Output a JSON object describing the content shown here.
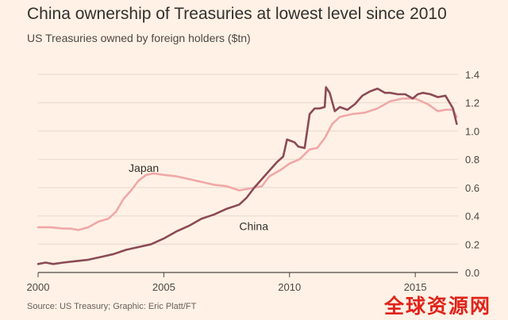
{
  "title": "China ownership of Treasuries at lowest level since 2010",
  "subtitle": "US Treasuries owned by foreign holders ($tn)",
  "source": "Source: US Treasury; Graphic: Eric Platt/FT",
  "watermark": "全球资源网",
  "colors": {
    "background": "#fff1e5",
    "china": "#8b4a56",
    "japan": "#f0a8a8",
    "grid": "#e5d8cc",
    "axis": "#4d4845",
    "tick_text": "#4d4845",
    "watermark": "#e0231a"
  },
  "chart_data": {
    "type": "line",
    "title": "China ownership of Treasuries at lowest level since 2010",
    "subtitle": "US Treasuries owned by foreign holders ($tn)",
    "xlim": [
      2000,
      2016.7
    ],
    "ylim": [
      0,
      1.4
    ],
    "x_ticks": [
      2000,
      2005,
      2010,
      2015
    ],
    "y_ticks": [
      0.0,
      0.2,
      0.4,
      0.6,
      0.8,
      1.0,
      1.2,
      1.4
    ],
    "y_tick_labels": [
      "0.0",
      "0.2",
      "0.4",
      "0.6",
      "0.8",
      "1.0",
      "1.2",
      "1.4"
    ],
    "grid": true,
    "series": [
      {
        "name": "Japan",
        "color_key": "japan",
        "x": [
          2000.0,
          2000.5,
          2001.0,
          2001.3,
          2001.6,
          2002.0,
          2002.4,
          2002.8,
          2003.1,
          2003.4,
          2003.7,
          2004.0,
          2004.3,
          2004.6,
          2005.0,
          2005.5,
          2006.0,
          2006.5,
          2007.0,
          2007.5,
          2008.0,
          2008.3,
          2008.6,
          2008.9,
          2009.2,
          2009.6,
          2010.0,
          2010.4,
          2010.8,
          2011.1,
          2011.4,
          2011.7,
          2012.0,
          2012.5,
          2013.0,
          2013.5,
          2014.0,
          2014.5,
          2015.0,
          2015.5,
          2015.9,
          2016.2,
          2016.5,
          2016.65
        ],
        "y": [
          0.32,
          0.32,
          0.31,
          0.31,
          0.3,
          0.32,
          0.36,
          0.38,
          0.43,
          0.52,
          0.58,
          0.65,
          0.69,
          0.7,
          0.69,
          0.68,
          0.66,
          0.64,
          0.62,
          0.61,
          0.58,
          0.59,
          0.6,
          0.61,
          0.68,
          0.72,
          0.77,
          0.8,
          0.87,
          0.88,
          0.95,
          1.05,
          1.1,
          1.12,
          1.13,
          1.16,
          1.21,
          1.23,
          1.23,
          1.19,
          1.14,
          1.15,
          1.15,
          1.1
        ]
      },
      {
        "name": "China",
        "color_key": "china",
        "x": [
          2000.0,
          2000.3,
          2000.6,
          2001.0,
          2001.5,
          2002.0,
          2002.5,
          2003.0,
          2003.5,
          2004.0,
          2004.5,
          2005.0,
          2005.5,
          2006.0,
          2006.5,
          2007.0,
          2007.5,
          2008.0,
          2008.3,
          2008.6,
          2008.9,
          2009.2,
          2009.5,
          2009.75,
          2009.9,
          2010.2,
          2010.35,
          2010.6,
          2010.8,
          2011.0,
          2011.2,
          2011.4,
          2011.45,
          2011.6,
          2011.8,
          2012.0,
          2012.3,
          2012.6,
          2012.9,
          2013.2,
          2013.5,
          2013.8,
          2014.0,
          2014.3,
          2014.6,
          2014.9,
          2015.1,
          2015.3,
          2015.6,
          2015.9,
          2016.2,
          2016.5,
          2016.65
        ],
        "y": [
          0.06,
          0.07,
          0.06,
          0.07,
          0.08,
          0.09,
          0.11,
          0.13,
          0.16,
          0.18,
          0.2,
          0.24,
          0.29,
          0.33,
          0.38,
          0.41,
          0.45,
          0.48,
          0.53,
          0.6,
          0.66,
          0.72,
          0.78,
          0.82,
          0.94,
          0.92,
          0.89,
          0.88,
          1.12,
          1.16,
          1.16,
          1.17,
          1.31,
          1.27,
          1.14,
          1.17,
          1.15,
          1.19,
          1.25,
          1.28,
          1.3,
          1.27,
          1.27,
          1.26,
          1.26,
          1.23,
          1.26,
          1.27,
          1.26,
          1.24,
          1.25,
          1.16,
          1.05
        ]
      }
    ],
    "annotations": [
      {
        "text": "Japan",
        "series": "Japan",
        "x": 2003.6,
        "y": 0.71
      },
      {
        "text": "China",
        "series": "China",
        "x": 2008.0,
        "y": 0.3
      }
    ]
  }
}
